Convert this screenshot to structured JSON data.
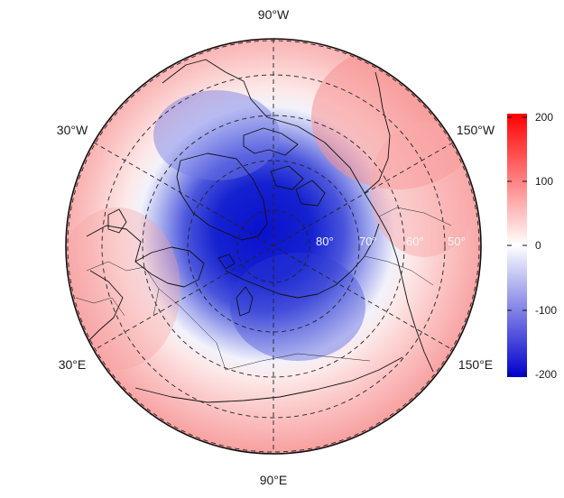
{
  "map": {
    "projection": "north-polar-stereographic",
    "longitude_labels": [
      "90°W",
      "30°W",
      "150°W",
      "30°E",
      "150°E",
      "90°E"
    ],
    "latitude_labels": [
      "80°",
      "70°",
      "60°",
      "50°"
    ],
    "latitude_circles": [
      80,
      70,
      60,
      50,
      40
    ],
    "meridians": [
      -150,
      -90,
      -30,
      30,
      90,
      150
    ],
    "field": {
      "pole_value": -200,
      "contrast_colors": {
        "low": "#0000cc",
        "mid": "#ffffff",
        "high": "#ff0000"
      }
    }
  },
  "colorbar": {
    "ticks": [
      "200",
      "100",
      "0",
      "-100",
      "-200"
    ],
    "range": [
      -200,
      200
    ],
    "colors": [
      "#0000cc",
      "#ffffff",
      "#ff0000"
    ]
  }
}
